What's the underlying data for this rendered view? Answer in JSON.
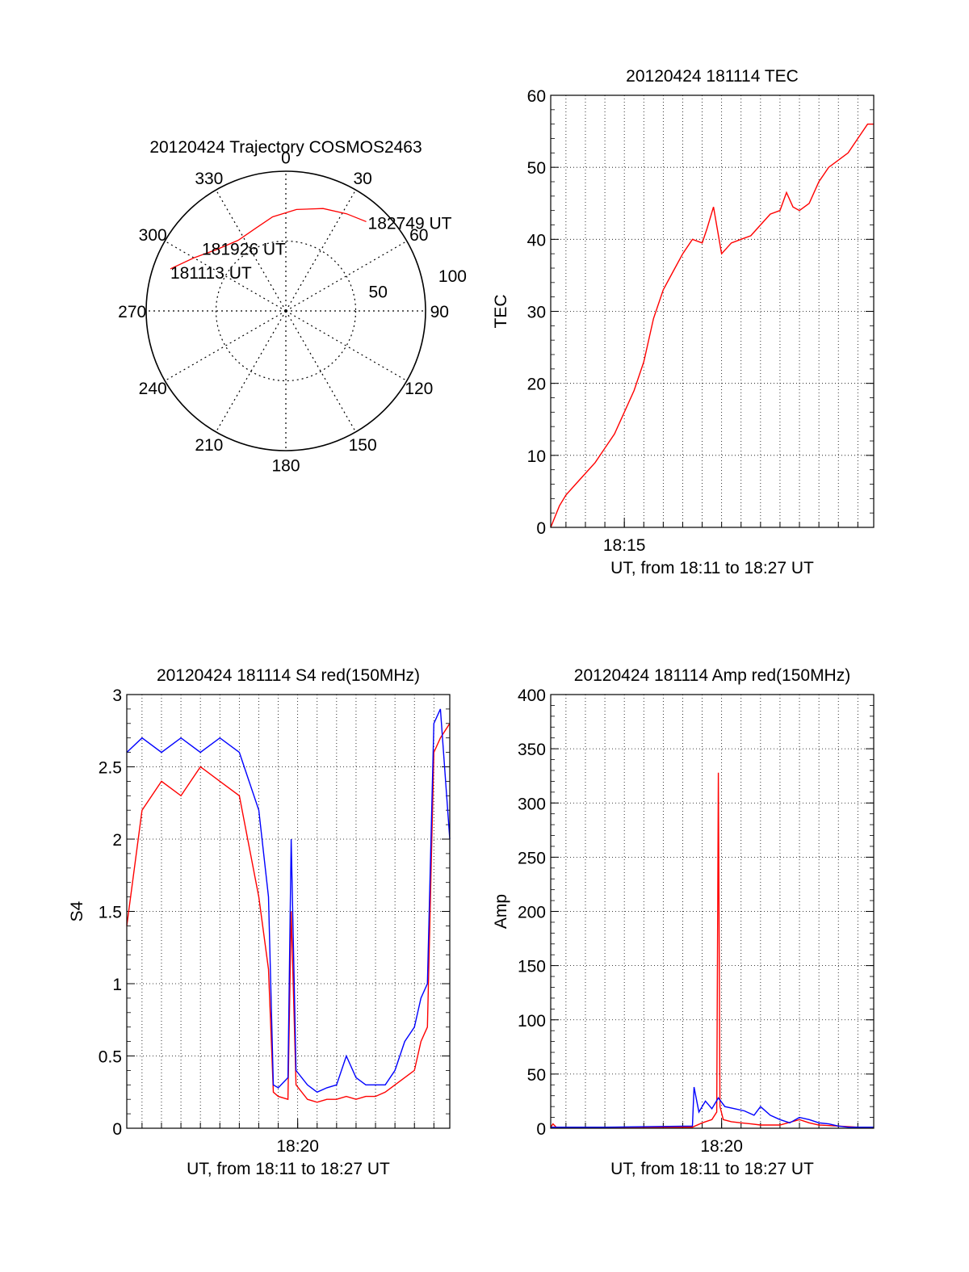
{
  "chart_data": [
    {
      "type": "polar",
      "title": "20120424 Trajectory COSMOS2463",
      "azimuth_labels": [
        "0",
        "30",
        "60",
        "90",
        "120",
        "150",
        "180",
        "210",
        "240",
        "270",
        "300",
        "330"
      ],
      "radial_labels": [
        "50",
        "100"
      ],
      "rlim": [
        0,
        100
      ],
      "grid": true,
      "series": [
        {
          "color": "#ff0000",
          "points": [
            {
              "az": 290,
              "r": 88
            },
            {
              "az": 300,
              "r": 76
            },
            {
              "az": 312,
              "r": 66
            },
            {
              "az": 326,
              "r": 61
            },
            {
              "az": 340,
              "r": 63
            },
            {
              "az": 352,
              "r": 68
            },
            {
              "az": 6,
              "r": 73
            },
            {
              "az": 20,
              "r": 78
            },
            {
              "az": 32,
              "r": 82
            },
            {
              "az": 42,
              "r": 86
            }
          ]
        }
      ],
      "annotations": [
        {
          "text": "182749 UT",
          "az": 42,
          "r": 86
        },
        {
          "text": "181926 UT",
          "az": 326,
          "r": 61
        },
        {
          "text": "181113 UT",
          "az": 290,
          "r": 88
        }
      ]
    },
    {
      "type": "line",
      "title": "20120424 181114 TEC",
      "xlabel": "UT, from 18:11 to 18:27 UT",
      "ylabel": "TEC",
      "xlim": [
        "18:11:13",
        "18:27:49"
      ],
      "ylim": [
        0,
        60
      ],
      "x_ticks": [
        "18:15"
      ],
      "y_ticks": [
        "0",
        "10",
        "20",
        "30",
        "40",
        "50",
        "60"
      ],
      "grid": true,
      "series": [
        {
          "color": "#ff0000",
          "x": [
            "18:11:13",
            "18:11:40",
            "18:12:00",
            "18:12:30",
            "18:13:00",
            "18:13:30",
            "18:14:00",
            "18:14:30",
            "18:15:00",
            "18:15:30",
            "18:16:00",
            "18:16:30",
            "18:17:00",
            "18:17:30",
            "18:18:00",
            "18:18:30",
            "18:19:00",
            "18:19:15",
            "18:19:35",
            "18:20:00",
            "18:20:30",
            "18:21:00",
            "18:21:30",
            "18:22:00",
            "18:22:30",
            "18:23:00",
            "18:23:20",
            "18:23:40",
            "18:24:00",
            "18:24:30",
            "18:25:00",
            "18:25:30",
            "18:26:00",
            "18:26:30",
            "18:27:00",
            "18:27:30",
            "18:27:49"
          ],
          "values": [
            0,
            3,
            4.5,
            6,
            7.5,
            9,
            11,
            13,
            16,
            19,
            23,
            29,
            33,
            35.5,
            38,
            40,
            39.5,
            41.5,
            44.5,
            38,
            39.5,
            40,
            40.5,
            42,
            43.5,
            44,
            46.5,
            44.5,
            44,
            45,
            48,
            50,
            51,
            52,
            54,
            56,
            56
          ]
        }
      ]
    },
    {
      "type": "line",
      "title": "20120424 181114 S4 red(150MHz)",
      "xlabel": "UT, from 18:11 to 18:27 UT",
      "ylabel": "S4",
      "xlim": [
        "18:11:13",
        "18:27:49"
      ],
      "ylim": [
        0,
        3
      ],
      "x_ticks": [
        "18:20"
      ],
      "y_ticks": [
        "0",
        "0.5",
        "1",
        "1.5",
        "2",
        "2.5",
        "3"
      ],
      "grid": true,
      "series": [
        {
          "color": "#ff0000",
          "x": [
            "18:11:13",
            "18:12:00",
            "18:13:00",
            "18:14:00",
            "18:15:00",
            "18:16:00",
            "18:17:00",
            "18:18:00",
            "18:18:30",
            "18:18:45",
            "18:19:00",
            "18:19:30",
            "18:19:40",
            "18:19:55",
            "18:20:30",
            "18:21:00",
            "18:21:30",
            "18:22:00",
            "18:22:30",
            "18:23:00",
            "18:23:30",
            "18:24:00",
            "18:24:30",
            "18:25:00",
            "18:25:30",
            "18:26:00",
            "18:26:20",
            "18:26:40",
            "18:27:00",
            "18:27:20",
            "18:27:49"
          ],
          "values": [
            1.4,
            2.2,
            2.4,
            2.3,
            2.5,
            2.4,
            2.3,
            1.6,
            1.1,
            0.25,
            0.22,
            0.2,
            1.5,
            0.3,
            0.2,
            0.18,
            0.2,
            0.2,
            0.22,
            0.2,
            0.22,
            0.22,
            0.25,
            0.3,
            0.35,
            0.4,
            0.6,
            0.7,
            2.6,
            2.7,
            2.8
          ]
        },
        {
          "color": "#0000ff",
          "x": [
            "18:11:13",
            "18:12:00",
            "18:13:00",
            "18:14:00",
            "18:15:00",
            "18:16:00",
            "18:17:00",
            "18:18:00",
            "18:18:30",
            "18:18:45",
            "18:19:00",
            "18:19:30",
            "18:19:40",
            "18:19:55",
            "18:20:30",
            "18:21:00",
            "18:21:30",
            "18:22:00",
            "18:22:30",
            "18:23:00",
            "18:23:30",
            "18:24:00",
            "18:24:30",
            "18:25:00",
            "18:25:30",
            "18:26:00",
            "18:26:20",
            "18:26:40",
            "18:27:00",
            "18:27:20",
            "18:27:49"
          ],
          "values": [
            2.6,
            2.7,
            2.6,
            2.7,
            2.6,
            2.7,
            2.6,
            2.2,
            1.6,
            0.3,
            0.28,
            0.35,
            2.0,
            0.4,
            0.3,
            0.25,
            0.28,
            0.3,
            0.5,
            0.35,
            0.3,
            0.3,
            0.3,
            0.4,
            0.6,
            0.7,
            0.9,
            1.0,
            2.8,
            2.9,
            2.0
          ]
        }
      ]
    },
    {
      "type": "line",
      "title": "20120424 181114 Amp red(150MHz)",
      "xlabel": "UT, from 18:11 to 18:27 UT",
      "ylabel": "Amp",
      "xlim": [
        "18:11:13",
        "18:27:49"
      ],
      "ylim": [
        0,
        400
      ],
      "x_ticks": [
        "18:20"
      ],
      "y_ticks": [
        "0",
        "50",
        "100",
        "150",
        "200",
        "250",
        "300",
        "350",
        "400"
      ],
      "grid": true,
      "series": [
        {
          "color": "#ff0000",
          "x": [
            "18:11:13",
            "18:11:20",
            "18:11:30",
            "18:14:00",
            "18:18:30",
            "18:19:00",
            "18:19:30",
            "18:19:45",
            "18:19:50",
            "18:19:55",
            "18:20:05",
            "18:20:30",
            "18:21:00",
            "18:21:30",
            "18:22:00",
            "18:23:00",
            "18:24:00",
            "18:24:30",
            "18:25:00",
            "18:26:00",
            "18:27:00",
            "18:27:49"
          ],
          "values": [
            1,
            4,
            1,
            1,
            1,
            5,
            8,
            15,
            328,
            20,
            8,
            6,
            5,
            4,
            3,
            3,
            8,
            5,
            3,
            2,
            1,
            1
          ]
        },
        {
          "color": "#0000ff",
          "x": [
            "18:11:13",
            "18:14:00",
            "18:18:30",
            "18:18:35",
            "18:18:50",
            "18:19:10",
            "18:19:30",
            "18:19:50",
            "18:20:10",
            "18:20:40",
            "18:21:10",
            "18:21:40",
            "18:22:00",
            "18:22:30",
            "18:23:00",
            "18:23:30",
            "18:24:00",
            "18:24:30",
            "18:25:00",
            "18:25:30",
            "18:26:00",
            "18:26:30",
            "18:27:00",
            "18:27:49"
          ],
          "values": [
            1,
            1,
            2,
            38,
            15,
            25,
            18,
            28,
            20,
            18,
            16,
            12,
            20,
            12,
            8,
            5,
            10,
            8,
            5,
            4,
            2,
            1,
            1,
            1
          ]
        }
      ]
    }
  ]
}
